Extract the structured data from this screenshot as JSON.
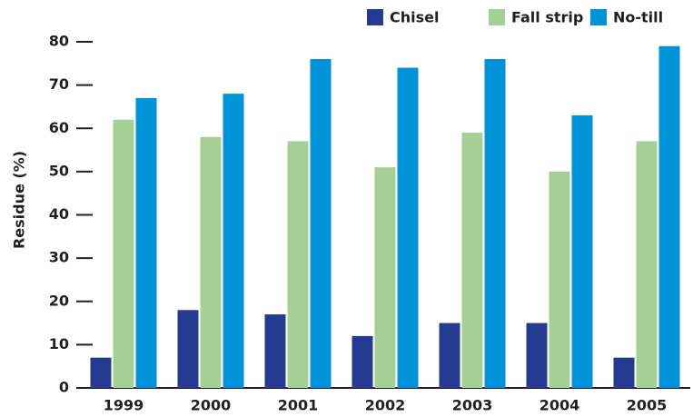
{
  "chart_data": {
    "type": "bar",
    "y_label": "Residue (%)",
    "categories": [
      "1999",
      "2000",
      "2001",
      "2002",
      "2003",
      "2004",
      "2005"
    ],
    "series": [
      {
        "name": "Chisel",
        "color": "#263a8f",
        "values": [
          7,
          18,
          17,
          12,
          15,
          15,
          7
        ]
      },
      {
        "name": "Fall strip",
        "color": "#a5cf94",
        "values": [
          62,
          58,
          57,
          51,
          59,
          50,
          57
        ]
      },
      {
        "name": "No-till",
        "color": "#0093d8",
        "values": [
          67,
          68,
          76,
          74,
          76,
          63,
          79
        ]
      }
    ],
    "ylim": [
      0,
      80
    ],
    "yticks": [
      0,
      10,
      20,
      30,
      40,
      50,
      60,
      70,
      80
    ],
    "legend": "upper right",
    "grid": false
  }
}
